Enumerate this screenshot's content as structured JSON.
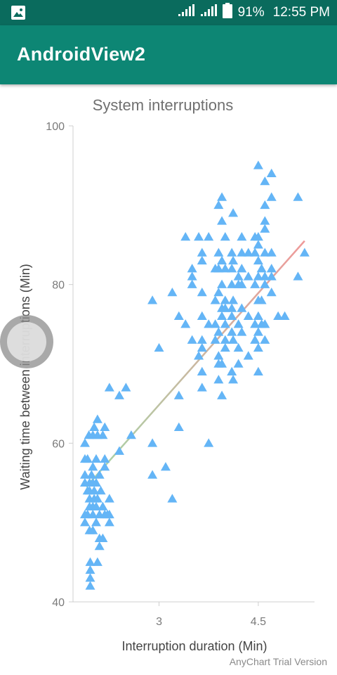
{
  "status_bar": {
    "battery": "91%",
    "time": "12:55 PM",
    "icons": [
      "image-notification-icon",
      "signal-icon",
      "signal-icon",
      "battery-icon"
    ]
  },
  "app_bar": {
    "title": "AndroidView2"
  },
  "colors": {
    "status_bar": "#0a6b5d",
    "app_bar": "#0d8674",
    "marker": "#64b5f6",
    "trend_start": "#a5d6a7",
    "trend_end": "#ef9a9a"
  },
  "chart_data": {
    "type": "scatter",
    "title": "System interruptions",
    "xlabel": "Interruption duration (Min)",
    "ylabel": "Waiting time between interruptions (Min)",
    "xlim": [
      1.7,
      5.35
    ],
    "ylim": [
      40,
      100
    ],
    "x_ticks": [
      3,
      4.5
    ],
    "y_ticks": [
      40,
      60,
      80,
      100
    ],
    "x_tick_labels": [
      "3",
      "4.5"
    ],
    "y_tick_labels": [
      "40",
      "60",
      "80",
      "100"
    ],
    "grid": false,
    "legend": "none",
    "marker": "triangle",
    "trend_line": {
      "x": [
        1.9,
        5.2
      ],
      "y": [
        54.5,
        85.5
      ]
    },
    "points": [
      [
        1.88,
        60
      ],
      [
        1.88,
        58
      ],
      [
        1.88,
        56
      ],
      [
        1.88,
        55
      ],
      [
        1.88,
        51
      ],
      [
        1.88,
        50
      ],
      [
        1.92,
        58
      ],
      [
        1.92,
        54
      ],
      [
        1.92,
        51
      ],
      [
        1.94,
        61
      ],
      [
        1.95,
        55
      ],
      [
        1.95,
        54
      ],
      [
        1.95,
        53
      ],
      [
        1.95,
        52
      ],
      [
        1.95,
        49
      ],
      [
        1.96,
        45
      ],
      [
        1.96,
        44
      ],
      [
        1.96,
        43
      ],
      [
        1.96,
        42
      ],
      [
        1.98,
        56
      ],
      [
        2.0,
        61
      ],
      [
        2.0,
        57
      ],
      [
        2.0,
        55
      ],
      [
        2.0,
        52
      ],
      [
        2.0,
        51
      ],
      [
        2.0,
        49
      ],
      [
        2.02,
        62
      ],
      [
        2.02,
        54
      ],
      [
        2.02,
        53
      ],
      [
        2.05,
        58
      ],
      [
        2.05,
        55
      ],
      [
        2.05,
        52
      ],
      [
        2.05,
        50
      ],
      [
        2.07,
        63
      ],
      [
        2.07,
        61
      ],
      [
        2.07,
        53
      ],
      [
        2.07,
        45
      ],
      [
        2.1,
        56
      ],
      [
        2.1,
        51
      ],
      [
        2.1,
        48
      ],
      [
        2.1,
        47
      ],
      [
        2.12,
        54
      ],
      [
        2.15,
        61
      ],
      [
        2.15,
        52
      ],
      [
        2.15,
        48
      ],
      [
        2.18,
        62
      ],
      [
        2.18,
        58
      ],
      [
        2.18,
        57
      ],
      [
        2.18,
        51
      ],
      [
        2.22,
        51
      ],
      [
        2.25,
        67
      ],
      [
        2.25,
        53
      ],
      [
        2.25,
        51
      ],
      [
        2.25,
        50
      ],
      [
        2.4,
        66
      ],
      [
        2.4,
        59
      ],
      [
        2.5,
        67
      ],
      [
        2.58,
        61
      ],
      [
        2.9,
        78
      ],
      [
        2.9,
        60
      ],
      [
        2.9,
        56
      ],
      [
        3.0,
        72
      ],
      [
        3.1,
        57
      ],
      [
        3.2,
        79
      ],
      [
        3.2,
        53
      ],
      [
        3.3,
        76
      ],
      [
        3.3,
        66
      ],
      [
        3.3,
        62
      ],
      [
        3.4,
        75
      ],
      [
        3.4,
        86
      ],
      [
        3.5,
        82
      ],
      [
        3.5,
        81
      ],
      [
        3.5,
        80
      ],
      [
        3.5,
        73
      ],
      [
        3.6,
        86
      ],
      [
        3.6,
        71
      ],
      [
        3.65,
        84
      ],
      [
        3.65,
        83
      ],
      [
        3.65,
        79
      ],
      [
        3.65,
        76
      ],
      [
        3.65,
        73
      ],
      [
        3.65,
        72
      ],
      [
        3.65,
        69
      ],
      [
        3.65,
        67
      ],
      [
        3.75,
        86
      ],
      [
        3.75,
        75
      ],
      [
        3.75,
        60
      ],
      [
        3.85,
        82
      ],
      [
        3.85,
        78
      ],
      [
        3.85,
        75
      ],
      [
        3.85,
        73
      ],
      [
        3.9,
        90
      ],
      [
        3.9,
        84
      ],
      [
        3.9,
        82
      ],
      [
        3.9,
        79
      ],
      [
        3.9,
        74
      ],
      [
        3.9,
        71
      ],
      [
        3.9,
        70
      ],
      [
        3.9,
        68
      ],
      [
        3.95,
        91
      ],
      [
        3.95,
        88
      ],
      [
        3.95,
        83
      ],
      [
        3.95,
        80
      ],
      [
        3.95,
        77
      ],
      [
        3.95,
        76
      ],
      [
        3.95,
        70
      ],
      [
        3.95,
        66
      ],
      [
        4.0,
        86
      ],
      [
        4.0,
        82
      ],
      [
        4.0,
        78
      ],
      [
        4.0,
        77
      ],
      [
        4.0,
        75
      ],
      [
        4.0,
        73
      ],
      [
        4.0,
        72
      ],
      [
        4.1,
        84
      ],
      [
        4.1,
        82
      ],
      [
        4.1,
        80
      ],
      [
        4.1,
        77
      ],
      [
        4.1,
        76
      ],
      [
        4.1,
        74
      ],
      [
        4.1,
        69
      ],
      [
        4.12,
        89
      ],
      [
        4.12,
        83
      ],
      [
        4.12,
        78
      ],
      [
        4.12,
        73
      ],
      [
        4.12,
        68
      ],
      [
        4.2,
        81
      ],
      [
        4.2,
        80
      ],
      [
        4.2,
        75
      ],
      [
        4.2,
        72
      ],
      [
        4.2,
        70
      ],
      [
        4.25,
        86
      ],
      [
        4.25,
        84
      ],
      [
        4.25,
        82
      ],
      [
        4.25,
        80
      ],
      [
        4.25,
        77
      ],
      [
        4.25,
        74
      ],
      [
        4.35,
        84
      ],
      [
        4.35,
        81
      ],
      [
        4.35,
        76
      ],
      [
        4.35,
        71
      ],
      [
        4.45,
        86
      ],
      [
        4.45,
        84
      ],
      [
        4.45,
        80
      ],
      [
        4.45,
        75
      ],
      [
        4.45,
        73
      ],
      [
        4.5,
        95
      ],
      [
        4.5,
        86
      ],
      [
        4.5,
        85
      ],
      [
        4.5,
        83
      ],
      [
        4.5,
        81
      ],
      [
        4.5,
        78
      ],
      [
        4.5,
        76
      ],
      [
        4.5,
        74
      ],
      [
        4.5,
        72
      ],
      [
        4.5,
        69
      ],
      [
        4.55,
        82
      ],
      [
        4.55,
        78
      ],
      [
        4.55,
        75
      ],
      [
        4.6,
        93
      ],
      [
        4.6,
        90
      ],
      [
        4.6,
        88
      ],
      [
        4.6,
        87
      ],
      [
        4.6,
        84
      ],
      [
        4.6,
        81
      ],
      [
        4.6,
        80
      ],
      [
        4.6,
        75
      ],
      [
        4.6,
        73
      ],
      [
        4.7,
        94
      ],
      [
        4.7,
        91
      ],
      [
        4.7,
        84
      ],
      [
        4.7,
        82
      ],
      [
        4.7,
        81
      ],
      [
        4.7,
        79
      ],
      [
        4.8,
        76
      ],
      [
        4.9,
        76
      ],
      [
        5.1,
        91
      ],
      [
        5.1,
        81
      ],
      [
        5.2,
        84
      ]
    ]
  },
  "credits": "AnyChart Trial Version"
}
